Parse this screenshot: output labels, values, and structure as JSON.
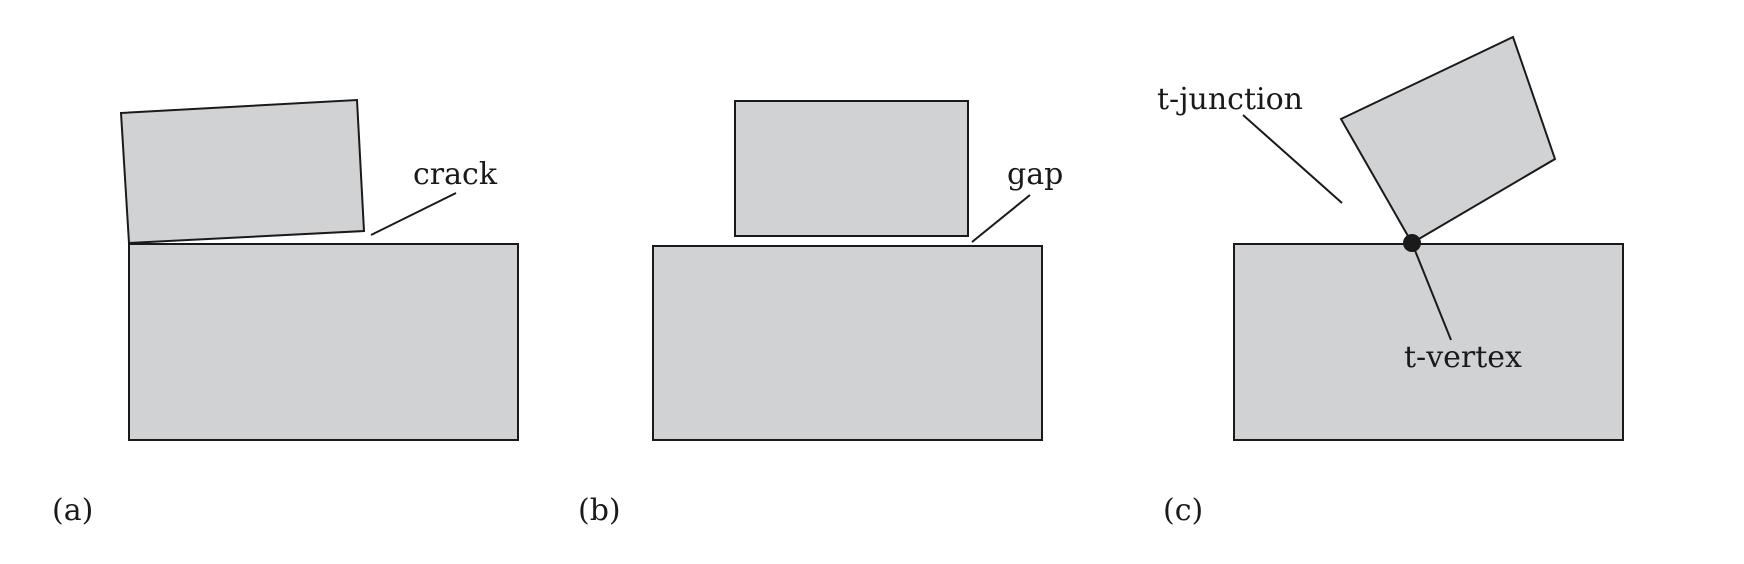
{
  "colors": {
    "fill": "#d1d2d4",
    "stroke": "#1a1a1a",
    "vertex": "#1a1a1a"
  },
  "panels": [
    {
      "id": "a",
      "caption": "(a)",
      "annotation": "crack"
    },
    {
      "id": "b",
      "caption": "(b)",
      "annotation": "gap"
    },
    {
      "id": "c",
      "caption": "(c)",
      "annotation": "t-junction",
      "annotation2": "t-vertex"
    }
  ]
}
